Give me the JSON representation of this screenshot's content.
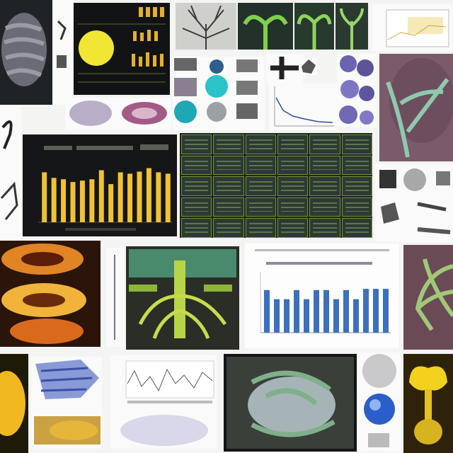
{
  "collage": {
    "description_visible_text": "none legible",
    "panels": [
      {
        "name": "brain-scan-panel"
      },
      {
        "name": "yellow-bar-dashboard"
      },
      {
        "name": "nerve-tree-panel"
      },
      {
        "name": "molecule-icons-panel"
      },
      {
        "name": "line-chart-panel"
      },
      {
        "name": "purple-cells-panel"
      },
      {
        "name": "lung-leaf-panel"
      },
      {
        "name": "yellow-bar-chart"
      },
      {
        "name": "green-grid-dashboard"
      },
      {
        "name": "orange-heart-panel"
      },
      {
        "name": "spine-diagram"
      },
      {
        "name": "blue-bar-chart"
      },
      {
        "name": "yellow-organ-panel"
      },
      {
        "name": "blue-fish-panel"
      },
      {
        "name": "waveform-panel"
      },
      {
        "name": "organ-render-panel"
      },
      {
        "name": "spheres-panel"
      },
      {
        "name": "yellow-flower-panel"
      }
    ]
  },
  "colors": {
    "accent_yellow": "#f1c232",
    "accent_blue": "#3d6fbf",
    "accent_green": "#8fb43a",
    "dark_panel": "#1b1d1f"
  },
  "chart_data": [
    {
      "type": "bar",
      "values": [
        72,
        64,
        62,
        58,
        60,
        62,
        75,
        55,
        72,
        70,
        73,
        78,
        72,
        70
      ],
      "ylim": [
        0,
        100
      ]
    },
    {
      "type": "bar",
      "values": [
        70,
        55,
        55,
        70,
        55,
        70,
        70,
        55,
        70,
        55,
        72,
        72,
        72
      ],
      "ylim": [
        0,
        100
      ]
    }
  ]
}
